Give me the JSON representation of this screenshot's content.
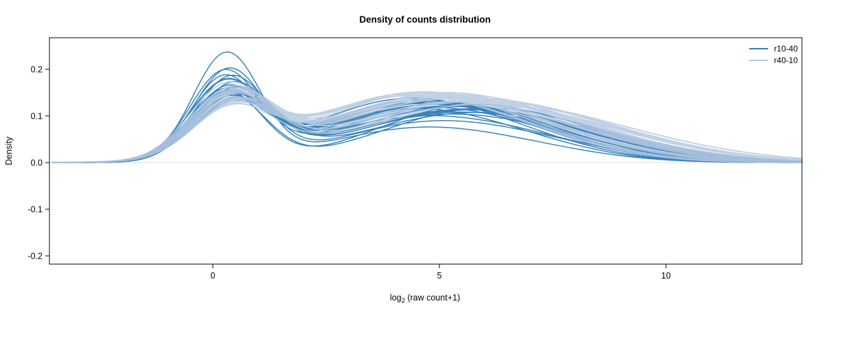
{
  "chart_data": {
    "type": "line",
    "subtype": "density",
    "title": "Density of counts distribution",
    "ylabel": "Density",
    "xlabel_parts": {
      "pre": "log",
      "sub": "2",
      "post": " (raw count+1)"
    },
    "xlim": [
      -3.55,
      13.0
    ],
    "ylim": [
      -0.2176,
      0.2676
    ],
    "grid": false,
    "legend_position": "top-right",
    "x_ticks": [
      {
        "label": "0",
        "value": 0
      },
      {
        "label": "5",
        "value": 5
      },
      {
        "label": "10",
        "value": 10
      }
    ],
    "y_ticks": [
      {
        "label": "0.2",
        "value": 0.2
      },
      {
        "label": "0.1",
        "value": 0.1
      },
      {
        "label": "0.0",
        "value": 0.0
      },
      {
        "label": "-0.1",
        "value": -0.1
      },
      {
        "label": "-0.2",
        "value": -0.2
      }
    ],
    "legend": [
      {
        "label": "r10-40",
        "color": "#2f7db8"
      },
      {
        "label": "r40-10",
        "color": "#b6c9e2"
      }
    ],
    "series": [
      {
        "name": "r10-40",
        "color": "#2f7db8",
        "stroke_width": 1.5,
        "opacity": 0.95,
        "curve_model": "sum of three gaussians [m1,h1,s1,m2,h2,s2,m3,h3,s3]",
        "curves": [
          [
            0.3,
            0.23,
            0.74,
            4.3,
            0.065,
            1.9,
            6.8,
            0.025,
            1.8
          ],
          [
            0.35,
            0.195,
            0.78,
            4.6,
            0.075,
            2.0,
            7.2,
            0.03,
            2.0
          ],
          [
            0.25,
            0.185,
            0.76,
            4.2,
            0.085,
            2.1,
            6.9,
            0.035,
            1.9
          ],
          [
            0.4,
            0.175,
            0.8,
            4.8,
            0.09,
            2.2,
            7.5,
            0.03,
            2.0
          ],
          [
            0.3,
            0.165,
            0.82,
            4.4,
            0.1,
            2.1,
            7.0,
            0.035,
            2.1
          ],
          [
            0.45,
            0.16,
            0.84,
            5.0,
            0.095,
            2.3,
            7.8,
            0.03,
            2.0
          ],
          [
            0.28,
            0.155,
            0.79,
            4.1,
            0.105,
            2.2,
            6.6,
            0.04,
            2.0
          ],
          [
            0.5,
            0.15,
            0.87,
            5.2,
            0.1,
            2.3,
            8.0,
            0.028,
            2.1
          ],
          [
            0.33,
            0.148,
            0.82,
            4.5,
            0.11,
            2.2,
            7.2,
            0.032,
            2.0
          ],
          [
            0.38,
            0.145,
            0.85,
            4.9,
            0.105,
            2.4,
            7.6,
            0.03,
            2.2
          ],
          [
            0.26,
            0.142,
            0.8,
            4.3,
            0.112,
            2.1,
            6.8,
            0.036,
            2.0
          ],
          [
            0.42,
            0.14,
            0.86,
            5.1,
            0.108,
            2.3,
            7.9,
            0.026,
            2.1
          ],
          [
            0.31,
            0.138,
            0.81,
            4.6,
            0.115,
            2.2,
            7.1,
            0.03,
            2.0
          ],
          [
            0.47,
            0.135,
            0.88,
            5.4,
            0.102,
            2.4,
            8.3,
            0.024,
            2.2
          ],
          [
            0.29,
            0.132,
            0.79,
            4.2,
            0.118,
            2.1,
            6.7,
            0.034,
            1.9
          ],
          [
            0.36,
            0.13,
            0.84,
            4.7,
            0.112,
            2.3,
            7.4,
            0.028,
            2.1
          ],
          [
            0.52,
            0.128,
            0.9,
            5.5,
            0.098,
            2.4,
            8.5,
            0.022,
            2.2
          ],
          [
            0.27,
            0.126,
            0.78,
            4.0,
            0.12,
            2.0,
            6.5,
            0.038,
            1.9
          ],
          [
            0.44,
            0.124,
            0.87,
            5.0,
            0.11,
            2.3,
            7.7,
            0.026,
            2.1
          ],
          [
            0.34,
            0.122,
            0.83,
            4.4,
            0.116,
            2.2,
            7.0,
            0.03,
            2.0
          ],
          [
            0.49,
            0.12,
            0.89,
            5.3,
            0.104,
            2.4,
            8.1,
            0.024,
            2.1
          ],
          [
            0.32,
            0.15,
            0.77,
            5.6,
            0.118,
            2.0,
            8.8,
            0.03,
            1.8
          ],
          [
            0.37,
            0.14,
            0.8,
            5.8,
            0.11,
            2.1,
            9.0,
            0.026,
            1.9
          ],
          [
            0.24,
            0.17,
            0.74,
            3.9,
            0.095,
            2.0,
            6.3,
            0.04,
            1.9
          ]
        ]
      },
      {
        "name": "r40-10",
        "color": "#b6c9e2",
        "stroke_width": 1.9,
        "opacity": 0.85,
        "curve_model": "sum of three gaussians [m1,h1,s1,m2,h2,s2,m3,h3,s3]",
        "curves": [
          [
            0.4,
            0.1,
            0.87,
            4.5,
            0.12,
            2.3,
            7.5,
            0.04,
            2.2
          ],
          [
            0.45,
            0.105,
            0.9,
            4.8,
            0.125,
            2.4,
            7.8,
            0.038,
            2.2
          ],
          [
            0.35,
            0.11,
            0.86,
            4.3,
            0.118,
            2.2,
            7.2,
            0.042,
            2.1
          ],
          [
            0.5,
            0.112,
            0.92,
            5.0,
            0.128,
            2.4,
            8.0,
            0.036,
            2.3
          ],
          [
            0.38,
            0.115,
            0.88,
            4.6,
            0.122,
            2.3,
            7.6,
            0.04,
            2.2
          ],
          [
            0.55,
            0.118,
            0.94,
            5.2,
            0.115,
            2.5,
            8.3,
            0.034,
            2.3
          ],
          [
            0.33,
            0.12,
            0.85,
            4.1,
            0.125,
            2.2,
            6.9,
            0.044,
            2.1
          ],
          [
            0.48,
            0.122,
            0.91,
            5.4,
            0.12,
            2.5,
            8.5,
            0.032,
            2.3
          ],
          [
            0.41,
            0.125,
            0.89,
            4.7,
            0.13,
            2.3,
            7.7,
            0.038,
            2.2
          ],
          [
            0.36,
            0.128,
            0.87,
            4.4,
            0.124,
            2.2,
            7.3,
            0.04,
            2.1
          ],
          [
            0.52,
            0.13,
            0.92,
            5.1,
            0.118,
            2.4,
            8.2,
            0.034,
            2.2
          ],
          [
            0.3,
            0.132,
            0.84,
            4.0,
            0.128,
            2.1,
            6.7,
            0.046,
            2.0
          ],
          [
            0.46,
            0.135,
            0.9,
            4.9,
            0.122,
            2.4,
            8.0,
            0.036,
            2.2
          ],
          [
            0.39,
            0.138,
            0.88,
            4.5,
            0.126,
            2.3,
            7.5,
            0.04,
            2.1
          ],
          [
            0.43,
            0.14,
            0.89,
            5.3,
            0.116,
            2.5,
            8.4,
            0.032,
            2.3
          ],
          [
            0.28,
            0.142,
            0.82,
            3.8,
            0.12,
            2.1,
            6.4,
            0.048,
            2.0
          ],
          [
            0.51,
            0.145,
            0.91,
            5.5,
            0.112,
            2.5,
            8.7,
            0.03,
            2.3
          ],
          [
            0.34,
            0.108,
            0.86,
            4.2,
            0.132,
            2.2,
            7.0,
            0.042,
            2.1
          ],
          [
            0.47,
            0.114,
            0.9,
            5.6,
            0.125,
            2.4,
            8.9,
            0.03,
            2.2
          ],
          [
            0.37,
            0.119,
            0.87,
            4.8,
            0.135,
            2.3,
            7.9,
            0.036,
            2.2
          ],
          [
            0.53,
            0.124,
            0.93,
            5.8,
            0.118,
            2.5,
            9.2,
            0.028,
            2.3
          ],
          [
            0.31,
            0.129,
            0.84,
            4.3,
            0.13,
            2.2,
            7.1,
            0.042,
            2.1
          ],
          [
            0.44,
            0.134,
            0.89,
            5.0,
            0.126,
            2.4,
            8.1,
            0.034,
            2.2
          ],
          [
            0.29,
            0.103,
            0.85,
            3.9,
            0.122,
            2.1,
            6.6,
            0.046,
            2.0
          ]
        ]
      }
    ]
  }
}
